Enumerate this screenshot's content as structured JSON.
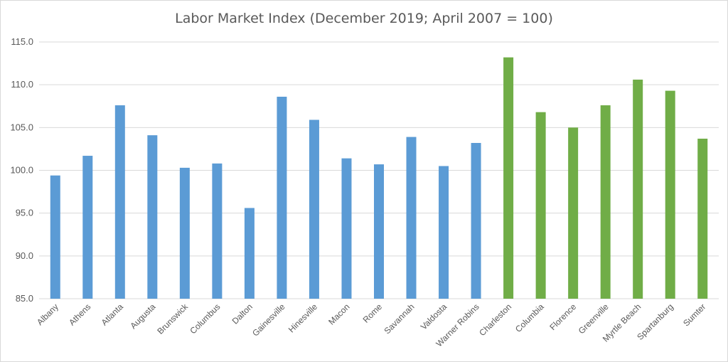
{
  "chart_data": {
    "type": "bar",
    "title": "Labor Market Index (December 2019; April 2007 = 100)",
    "xlabel": "",
    "ylabel": "",
    "ylim": [
      85,
      115
    ],
    "yticks": [
      "85.0",
      "90.0",
      "95.0",
      "100.0",
      "105.0",
      "110.0",
      "115.0"
    ],
    "ytick_values": [
      85,
      90,
      95,
      100,
      105,
      110,
      115
    ],
    "grid": true,
    "legend": "none",
    "categories": [
      "Albany",
      "Athens",
      "Atlanta",
      "Augusta",
      "Brunswick",
      "Columbus",
      "Dalton",
      "Gainesville",
      "Hinesville",
      "Macon",
      "Rome",
      "Savannah",
      "Valdosta",
      "Warner Robins",
      "Charleston",
      "Columbia",
      "Florence",
      "Greenville",
      "Myrtle Beach",
      "Spartanburg",
      "Sumter"
    ],
    "values": [
      99.4,
      101.7,
      107.6,
      104.1,
      100.3,
      100.8,
      95.6,
      108.6,
      105.9,
      101.4,
      100.7,
      103.9,
      100.5,
      103.2,
      113.2,
      106.8,
      105.0,
      107.6,
      110.6,
      109.3,
      103.7
    ],
    "colors": [
      "#5b9bd5",
      "#5b9bd5",
      "#5b9bd5",
      "#5b9bd5",
      "#5b9bd5",
      "#5b9bd5",
      "#5b9bd5",
      "#5b9bd5",
      "#5b9bd5",
      "#5b9bd5",
      "#5b9bd5",
      "#5b9bd5",
      "#5b9bd5",
      "#5b9bd5",
      "#70ad47",
      "#70ad47",
      "#70ad47",
      "#70ad47",
      "#70ad47",
      "#70ad47",
      "#70ad47"
    ],
    "grid_color": "#d9d9d9",
    "text_color": "#595959"
  }
}
